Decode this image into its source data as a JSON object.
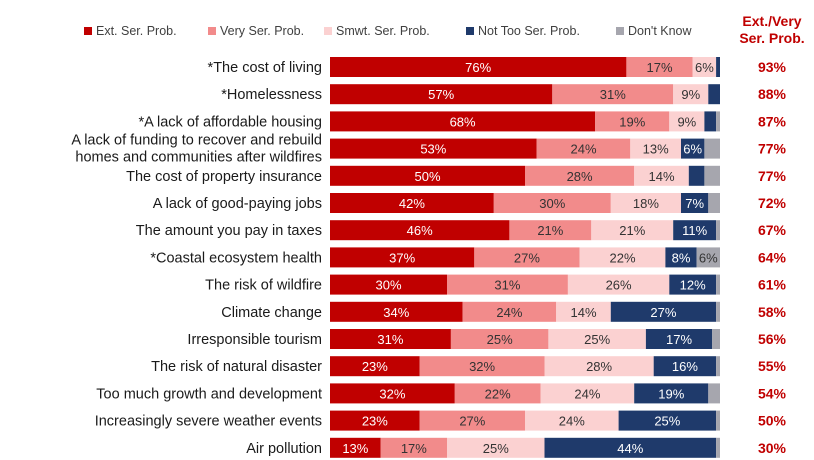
{
  "chart_data": {
    "type": "bar",
    "orientation": "horizontal",
    "stacked": true,
    "legend_position": "top",
    "grid": false,
    "xlim": [
      0,
      100
    ],
    "unit_suffix": "%",
    "categories": [
      "*The cost of living",
      "*Homelessness",
      "*A lack of affordable housing",
      "A lack of funding to recover and rebuild homes and communities after wildfires",
      "The cost of property insurance",
      "A lack of good-paying jobs",
      "The amount you pay in taxes",
      "*Coastal ecosystem health",
      "The risk of wildfire",
      "Climate change",
      "Irresponsible tourism",
      "The risk of natural disaster",
      "Too much growth and development",
      "Increasingly severe weather events",
      "Air pollution"
    ],
    "category_lines": [
      [
        "*The cost of living"
      ],
      [
        "*Homelessness"
      ],
      [
        "*A lack of affordable housing"
      ],
      [
        "A lack of funding to recover and rebuild",
        "homes and communities after wildfires"
      ],
      [
        "The cost of property insurance"
      ],
      [
        "A lack of good-paying jobs"
      ],
      [
        "The amount you pay in taxes"
      ],
      [
        "*Coastal ecosystem health"
      ],
      [
        "The risk of wildfire"
      ],
      [
        "Climate change"
      ],
      [
        "Irresponsible tourism"
      ],
      [
        "The risk of natural disaster"
      ],
      [
        "Too much growth and development"
      ],
      [
        "Increasingly severe weather events"
      ],
      [
        "Air pollution"
      ]
    ],
    "series": [
      {
        "name": "Ext. Ser. Prob.",
        "color": "#c00000",
        "label_color": "#ffffff",
        "values": [
          76,
          57,
          68,
          53,
          50,
          42,
          46,
          37,
          30,
          34,
          31,
          23,
          32,
          23,
          13
        ]
      },
      {
        "name": "Very Ser. Prob.",
        "color": "#f28b8b",
        "label_color": "#333333",
        "values": [
          17,
          31,
          19,
          24,
          28,
          30,
          21,
          27,
          31,
          24,
          25,
          32,
          22,
          27,
          17
        ]
      },
      {
        "name": "Smwt. Ser. Prob.",
        "color": "#fbd1d1",
        "label_color": "#333333",
        "values": [
          6,
          9,
          9,
          13,
          14,
          18,
          21,
          22,
          26,
          14,
          25,
          28,
          24,
          24,
          25
        ]
      },
      {
        "name": "Not Too Ser. Prob.",
        "color": "#1f3a6b",
        "label_color": "#ffffff",
        "values": [
          1,
          3,
          3,
          6,
          4,
          7,
          11,
          8,
          12,
          27,
          17,
          16,
          19,
          25,
          44
        ]
      },
      {
        "name": "Don't Know",
        "color": "#a6a6ae",
        "label_color": "#333333",
        "values": [
          0,
          0,
          1,
          4,
          4,
          3,
          1,
          6,
          1,
          1,
          2,
          1,
          3,
          1,
          1
        ]
      }
    ],
    "segment_labels": [
      [
        "76%",
        "17%",
        "6%",
        "",
        ""
      ],
      [
        "57%",
        "31%",
        "9%",
        "",
        ""
      ],
      [
        "68%",
        "19%",
        "9%",
        "",
        ""
      ],
      [
        "53%",
        "24%",
        "13%",
        "6%",
        ""
      ],
      [
        "50%",
        "28%",
        "14%",
        "",
        ""
      ],
      [
        "42%",
        "30%",
        "18%",
        "7%",
        ""
      ],
      [
        "46%",
        "21%",
        "21%",
        "11%",
        ""
      ],
      [
        "37%",
        "27%",
        "22%",
        "8%",
        "6%"
      ],
      [
        "30%",
        "31%",
        "26%",
        "12%",
        ""
      ],
      [
        "34%",
        "24%",
        "14%",
        "27%",
        ""
      ],
      [
        "31%",
        "25%",
        "25%",
        "17%",
        ""
      ],
      [
        "23%",
        "32%",
        "28%",
        "16%",
        ""
      ],
      [
        "32%",
        "22%",
        "24%",
        "19%",
        ""
      ],
      [
        "23%",
        "27%",
        "24%",
        "25%",
        ""
      ],
      [
        "13%",
        "17%",
        "25%",
        "44%",
        ""
      ]
    ],
    "summary_column": {
      "title_lines": [
        "Ext./Very",
        "Ser. Prob."
      ],
      "color": "#c00000",
      "values": [
        "93%",
        "88%",
        "87%",
        "77%",
        "77%",
        "72%",
        "67%",
        "64%",
        "61%",
        "58%",
        "56%",
        "55%",
        "54%",
        "50%",
        "30%"
      ]
    }
  }
}
